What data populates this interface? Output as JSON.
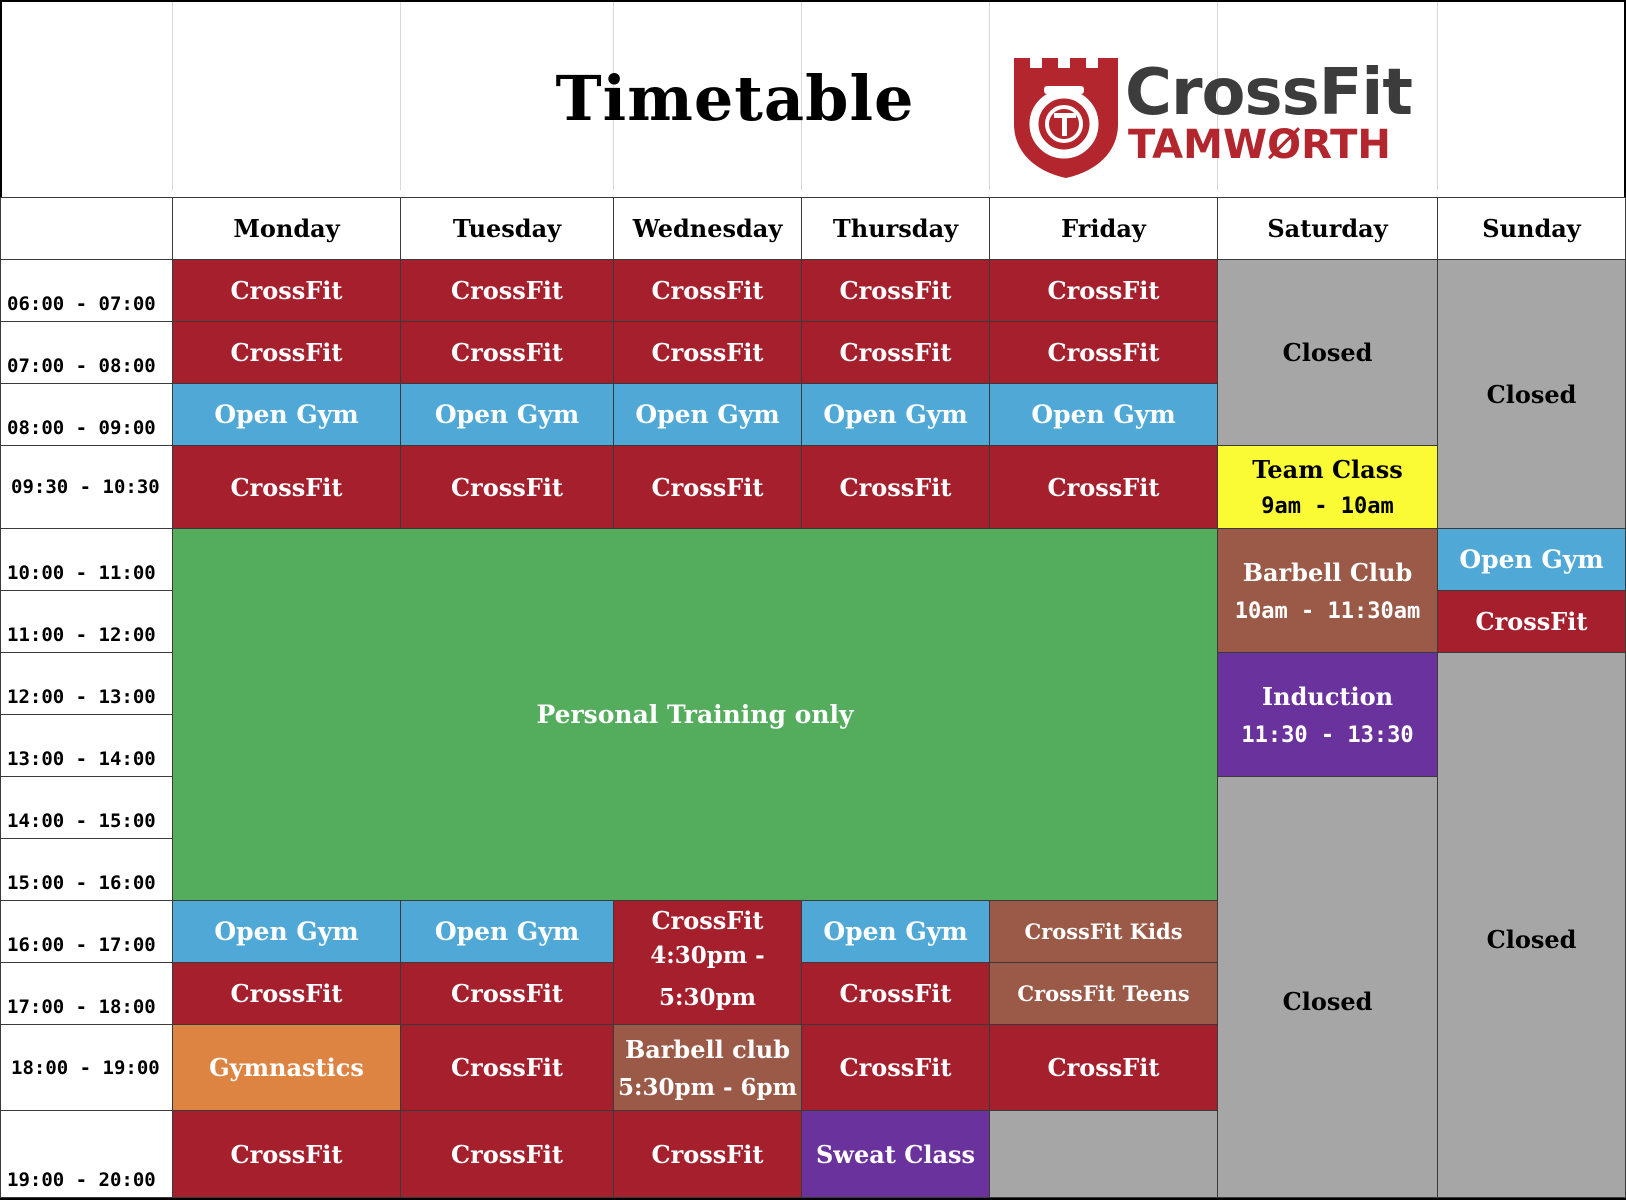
{
  "header": {
    "title": "Timetable"
  },
  "logo": {
    "line1": "CrossFit",
    "line2": "TAMWØRTH"
  },
  "days": [
    "Monday",
    "Tuesday",
    "Wednesday",
    "Thursday",
    "Friday",
    "Saturday",
    "Sunday"
  ],
  "times": [
    "06:00 - 07:00",
    "07:00 - 08:00",
    "08:00 - 09:00",
    "09:30 - 10:30",
    "10:00 - 11:00",
    "11:00 - 12:00",
    "12:00 - 13:00",
    "13:00 - 14:00",
    "14:00 - 15:00",
    "15:00 - 16:00",
    "16:00 - 17:00",
    "17:00 - 18:00",
    "18:00 - 19:00",
    "19:00 - 20:00"
  ],
  "labels": {
    "crossfit": "CrossFit",
    "open_gym": "Open Gym",
    "closed": "Closed",
    "personal_training": "Personal Training only",
    "team_class": "Team Class",
    "team_class_time": "9am - 10am",
    "barbell_club": "Barbell Club",
    "barbell_club_time": "10am - 11:30am",
    "induction": "Induction",
    "induction_time": "11:30 - 13:30",
    "wed_crossfit_time": "4:30pm - 5:30pm",
    "barbell_club_wed": "Barbell club",
    "barbell_club_wed_time": "5:30pm - 6pm",
    "crossfit_kids": "CrossFit Kids",
    "crossfit_teens": "CrossFit Teens",
    "gymnastics": "Gymnastics",
    "sweat_class": "Sweat Class"
  },
  "colors": {
    "crossfit": "#a51f2d",
    "open_gym": "#4fa8d6",
    "personal_training": "#54ad5c",
    "closed": "#a6a6a6",
    "team_class": "#fbfb35",
    "barbell": "#9a5a47",
    "induction": "#6a329c",
    "gymnastics": "#de8443"
  }
}
